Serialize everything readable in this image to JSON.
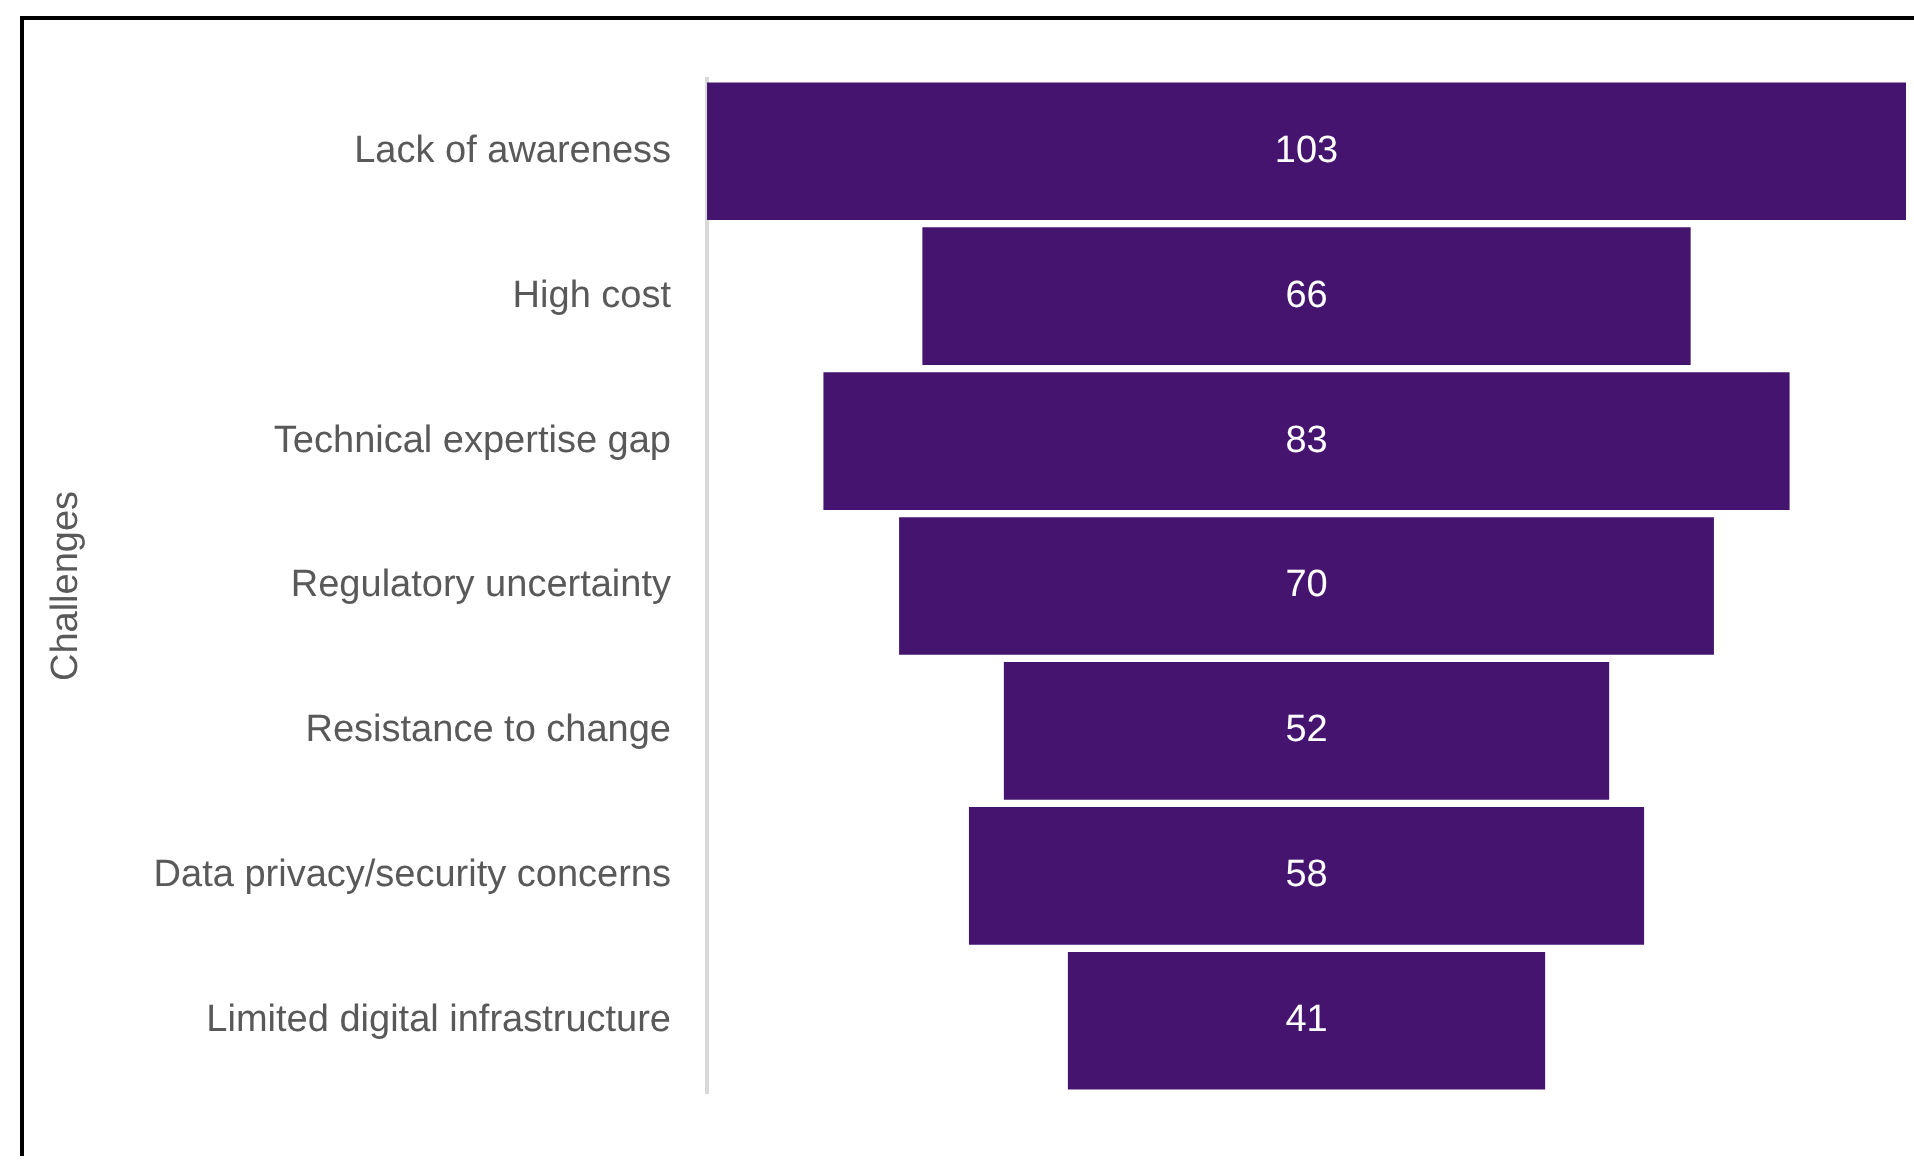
{
  "chart_data": {
    "type": "other",
    "ylabel": "Challenges",
    "categories": [
      "Lack of awareness",
      "High cost",
      "Technical expertise gap",
      "Regulatory uncertainty",
      "Resistance to change",
      "Data privacy/security concerns",
      "Limited digital infrastructure"
    ],
    "values": [
      103,
      66,
      83,
      70,
      52,
      58,
      41
    ],
    "color": "#44146f",
    "data_labels": true
  }
}
